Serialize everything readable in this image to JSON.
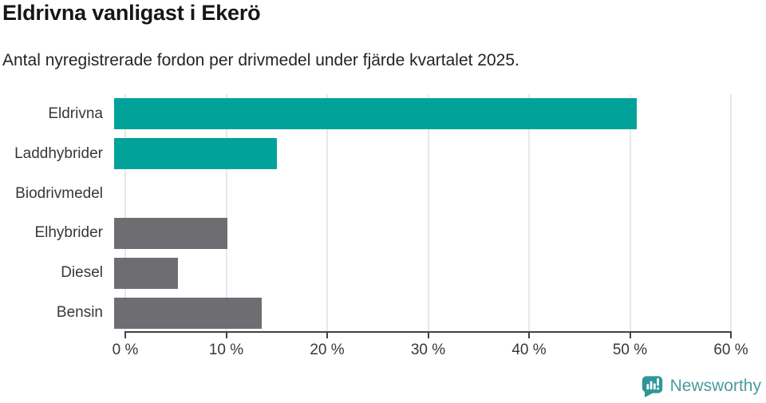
{
  "header": {
    "title": "Eldrivna vanligast i Ekerö",
    "subtitle": "Antal nyregistrerade fordon per drivmedel under fjärde kvartalet 2025."
  },
  "chart_data": {
    "type": "bar",
    "orientation": "horizontal",
    "title": "Eldrivna vanligast i Ekerö",
    "subtitle": "Antal nyregistrerade fordon per drivmedel under fjärde kvartalet 2025.",
    "categories": [
      "Eldrivna",
      "Laddhybrider",
      "Biodrivmedel",
      "Elhybrider",
      "Diesel",
      "Bensin"
    ],
    "values": [
      51.8,
      16.1,
      0,
      11.2,
      6.3,
      14.6
    ],
    "unit": "%",
    "xlim": [
      0,
      60
    ],
    "x_ticks": [
      0,
      10,
      20,
      30,
      40,
      50,
      60
    ],
    "x_tick_labels": [
      "0 %",
      "10 %",
      "20 %",
      "30 %",
      "40 %",
      "50 %",
      "60 %"
    ],
    "bar_colors": [
      "#00a299",
      "#00a299",
      "#6d6d72",
      "#6d6d72",
      "#6d6d72",
      "#6d6d72"
    ],
    "highlight_color": "#00a299",
    "default_color": "#6d6d72",
    "gridline_color": "#e8e8e8",
    "axis_color": "#424242",
    "grid": true,
    "legend": false
  },
  "footer": {
    "brand": "Newsworthy",
    "brand_color": "#4b9b9d",
    "logo_color": "#2f9697",
    "logo_icon": "newsworthy-speech-bubble-chart-icon"
  }
}
